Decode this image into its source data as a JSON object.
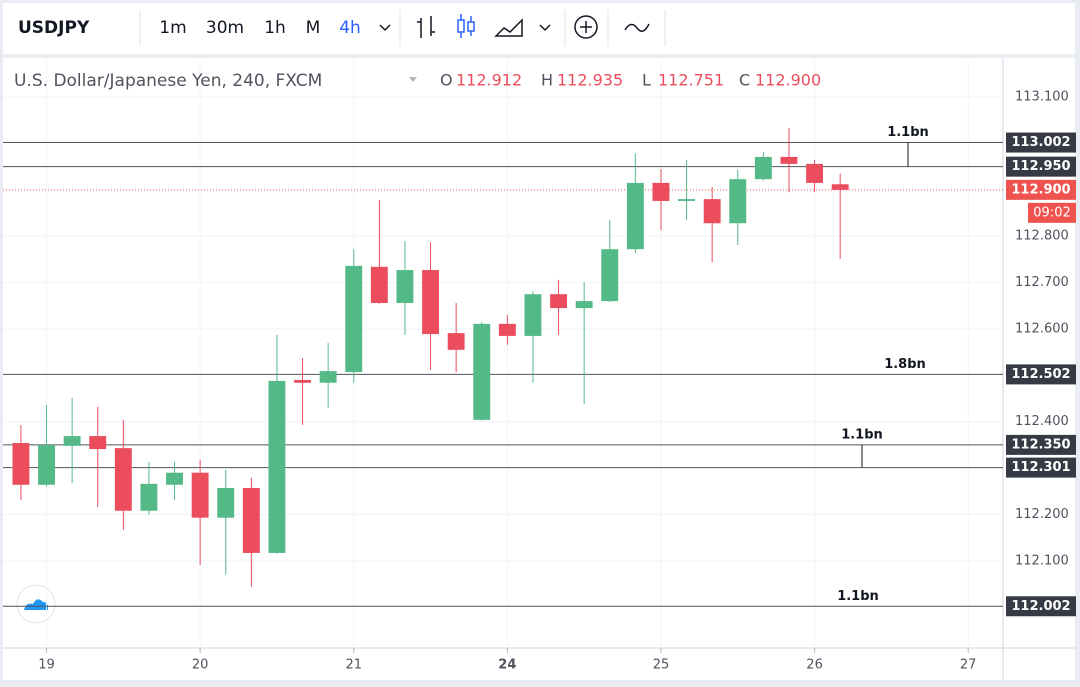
{
  "toolbar": {
    "symbol": "USDJPY",
    "intervals": [
      "1m",
      "30m",
      "1h",
      "M",
      "4h"
    ],
    "active_interval": "4h"
  },
  "chart_data": {
    "type": "candlestick",
    "title": "U.S. Dollar/Japanese Yen, 240, FXCM",
    "ohlc_legend": [
      {
        "key": "O",
        "value": "112.912"
      },
      {
        "key": "H",
        "value": "112.935"
      },
      {
        "key": "L",
        "value": "112.751"
      },
      {
        "key": "C",
        "value": "112.900"
      }
    ],
    "x": [
      0,
      1,
      2,
      3,
      4,
      5,
      6,
      7,
      8,
      9,
      10,
      11,
      12,
      13,
      14,
      15,
      16,
      17,
      18,
      19,
      20,
      21,
      22,
      23,
      24,
      25,
      26,
      27,
      28,
      29,
      30,
      31,
      32
    ],
    "open": [
      112.354,
      112.264,
      112.348,
      112.369,
      112.343,
      112.208,
      112.264,
      112.29,
      112.193,
      112.257,
      112.117,
      112.49,
      112.484,
      112.507,
      112.734,
      112.656,
      112.727,
      112.591,
      112.404,
      112.611,
      112.585,
      112.675,
      112.645,
      112.66,
      112.772,
      112.915,
      112.876,
      112.88,
      112.828,
      112.923,
      112.971,
      112.956,
      112.912
    ],
    "high": [
      112.393,
      112.436,
      112.451,
      112.432,
      112.404,
      112.313,
      112.313,
      112.318,
      112.296,
      112.279,
      112.587,
      112.537,
      112.57,
      112.772,
      112.878,
      112.79,
      112.787,
      112.656,
      112.615,
      112.63,
      112.682,
      112.706,
      112.701,
      112.835,
      112.979,
      112.945,
      112.964,
      112.906,
      112.943,
      112.981,
      113.033,
      112.964,
      112.935
    ],
    "low": [
      112.231,
      112.26,
      112.268,
      112.216,
      112.167,
      112.199,
      112.231,
      112.091,
      112.07,
      112.044,
      112.115,
      112.393,
      112.43,
      112.484,
      112.654,
      112.587,
      112.512,
      112.507,
      112.402,
      112.566,
      112.484,
      112.587,
      112.438,
      112.658,
      112.764,
      112.813,
      112.835,
      112.744,
      112.781,
      112.92,
      112.895,
      112.895,
      112.751
    ],
    "close": [
      112.264,
      112.35,
      112.369,
      112.341,
      112.208,
      112.266,
      112.29,
      112.193,
      112.257,
      112.117,
      112.488,
      112.484,
      112.509,
      112.736,
      112.656,
      112.727,
      112.589,
      112.555,
      112.611,
      112.585,
      112.675,
      112.645,
      112.66,
      112.772,
      112.915,
      112.876,
      112.88,
      112.828,
      112.923,
      112.971,
      112.956,
      112.915,
      112.9
    ],
    "up_color": "#53b987",
    "down_color": "#eb4d5c",
    "xlim": [
      -0.7,
      38.36
    ],
    "xticks": [
      {
        "value": 1,
        "label": "19"
      },
      {
        "value": 7,
        "label": "20"
      },
      {
        "value": 13,
        "label": "21"
      },
      {
        "value": 19,
        "label": "24"
      },
      {
        "value": 25,
        "label": "25"
      },
      {
        "value": 31,
        "label": "26"
      },
      {
        "value": 37,
        "label": "27"
      }
    ],
    "ylim": [
      111.912,
      113.18
    ],
    "yticks": [
      {
        "value": 112.1,
        "label": "112.100"
      },
      {
        "value": 112.2,
        "label": "112.200"
      },
      {
        "value": 112.4,
        "label": "112.400"
      },
      {
        "value": 112.6,
        "label": "112.600"
      },
      {
        "value": 112.7,
        "label": "112.700"
      },
      {
        "value": 112.8,
        "label": "112.800"
      },
      {
        "value": 113.1,
        "label": "113.100"
      }
    ],
    "grid": true,
    "levels": [
      {
        "value": 113.002,
        "label": "113.002",
        "note": "1.1bn"
      },
      {
        "value": 112.95,
        "label": "112.950"
      },
      {
        "value": 112.502,
        "label": "112.502",
        "note": "1.8bn"
      },
      {
        "value": 112.35,
        "label": "112.350",
        "note": "1.1bn"
      },
      {
        "value": 112.301,
        "label": "112.301"
      },
      {
        "value": 112.002,
        "label": "112.002",
        "note": "1.1bn"
      }
    ],
    "last_price": {
      "value": 112.9,
      "label": "112.900",
      "color": "#ef5350"
    },
    "countdown": "09:02"
  }
}
